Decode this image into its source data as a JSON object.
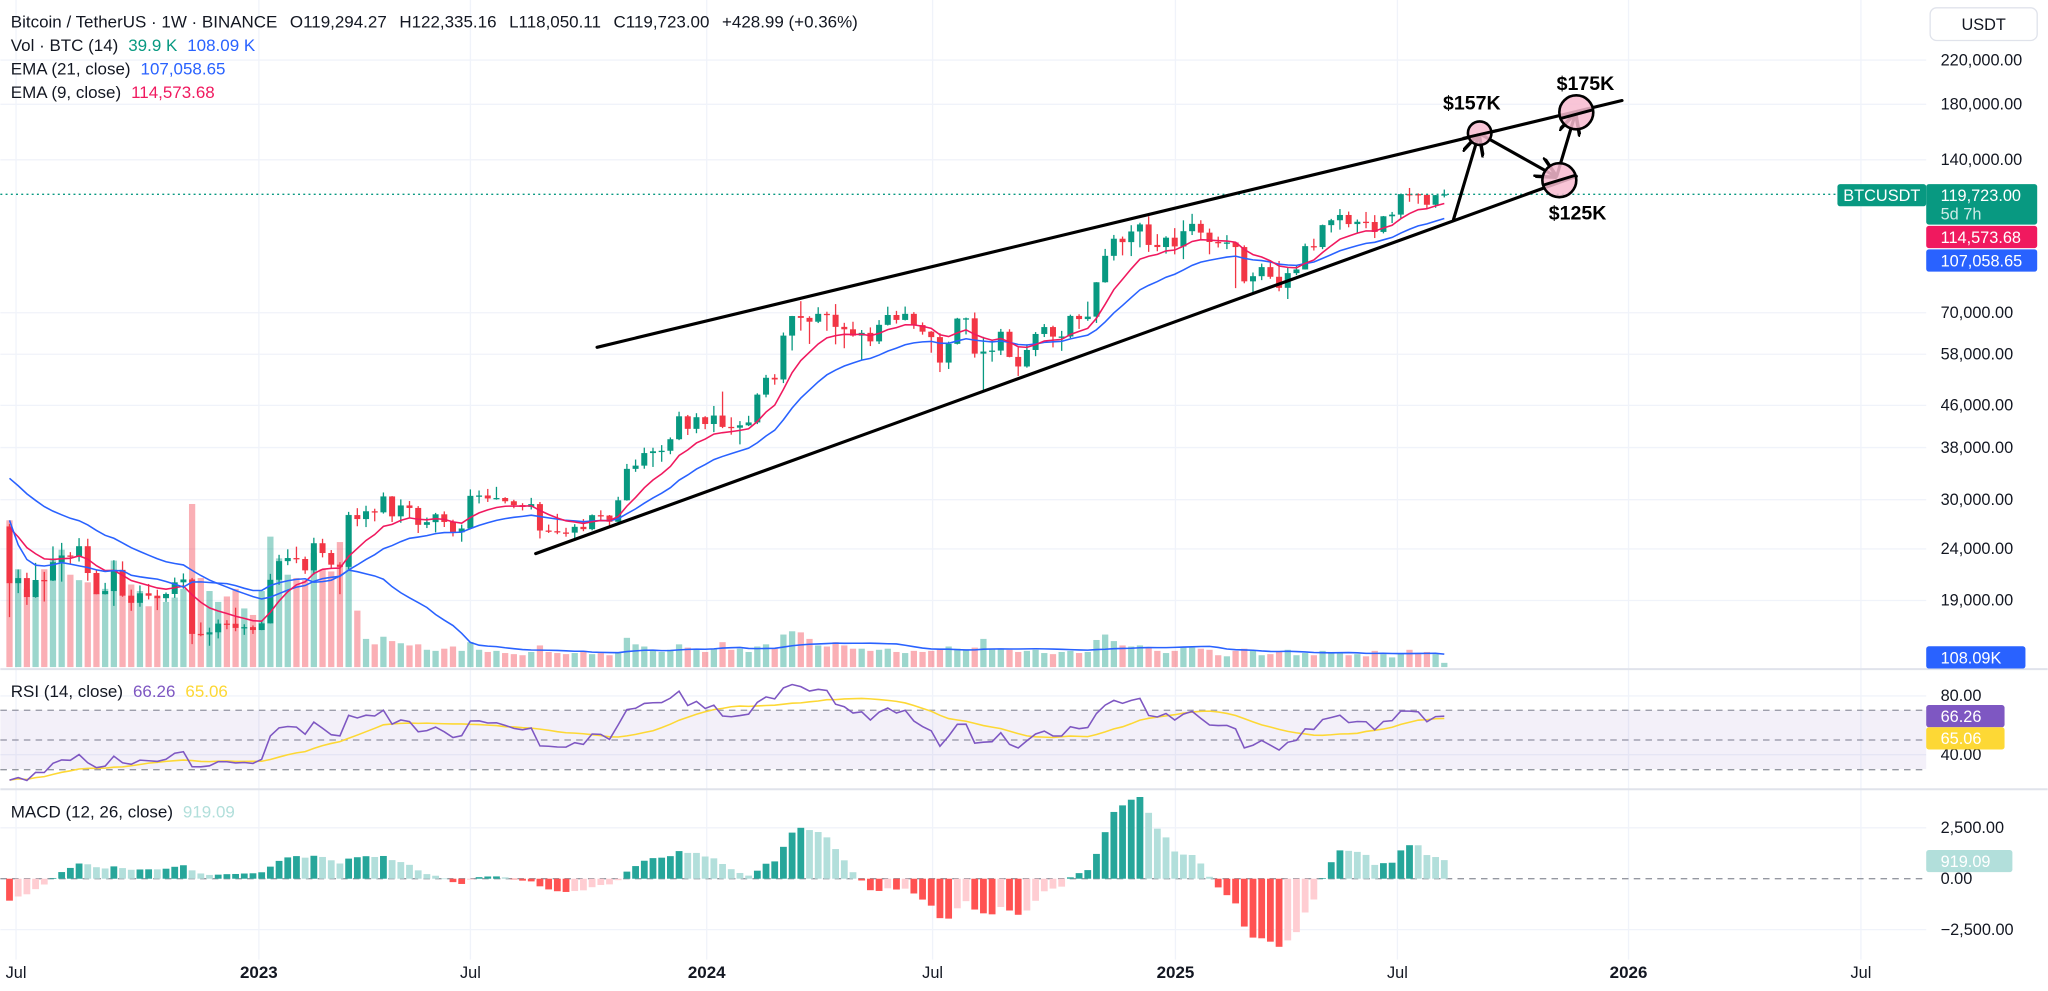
{
  "header": {
    "title": "Bitcoin / TetherUS · 1W · BINANCE",
    "ohlc": [
      {
        "label": "O",
        "value": "119,294.27"
      },
      {
        "label": "H",
        "value": "122,335.16"
      },
      {
        "label": "L",
        "value": "118,050.11"
      },
      {
        "label": "C",
        "value": "119,723.00"
      }
    ],
    "change": "+428.99 (+0.36%)"
  },
  "legends": {
    "volume": {
      "label": "Vol · BTC (14)",
      "value": "39.9 K",
      "ma_value": "108.09 K"
    },
    "ema21": {
      "label": "EMA (21, close)",
      "value": "107,058.65"
    },
    "ema9": {
      "label": "EMA (9, close)",
      "value": "114,573.68"
    },
    "rsi": {
      "label": "RSI (14, close)",
      "value": "66.26",
      "ma_value": "65.06"
    },
    "macd": {
      "label": "MACD (12, 26, close)",
      "value": "919.09"
    }
  },
  "price_axis": {
    "currency": "USDT",
    "ticks": [
      220000,
      180000,
      140000,
      70000,
      58000,
      46000,
      38000,
      30000,
      24000,
      19000
    ]
  },
  "badges": {
    "symbol": "BTCUSDT",
    "last_price": "119,723.00",
    "countdown": "5d 7h",
    "ema9": "114,573.68",
    "ema21": "107,058.65",
    "volume_ma": "108.09K",
    "rsi": "66.26",
    "rsi_ma": "65.06",
    "macd": "919.09"
  },
  "rsi_axis": {
    "ticks": [
      "80.00",
      "40.00"
    ]
  },
  "macd_axis": {
    "ticks": [
      "2,500.00",
      "0.00",
      "−2,500.00"
    ]
  },
  "time_axis": {
    "labels": [
      "Jul",
      "2023",
      "Jul",
      "2024",
      "Jul",
      "2025",
      "Jul",
      "2026",
      "Jul"
    ]
  },
  "annotations": {
    "target_1": "$157K",
    "target_2": "$175K",
    "target_3": "$125K"
  },
  "colors": {
    "up": "#089981",
    "down": "#f23645",
    "ema9": "#f0195f",
    "ema21": "#2962ff",
    "rsi": "#7e57c2",
    "rsi_ma": "#fdd835",
    "volume_ma": "#2962ff",
    "macd_up_strong": "#26a69a",
    "macd_up_weak": "#b2dfdb",
    "macd_down_strong": "#ff5252",
    "macd_down_weak": "#ffcdd2",
    "annotation_fill": "#f8bbd0"
  },
  "chart_data": [
    {
      "type": "candlestick",
      "title": "Bitcoin / TetherUS · 1W · BINANCE",
      "interval": "1W",
      "first_week": "2022-06-13",
      "y_scale": "log",
      "ylim": [
        15400,
        220000
      ],
      "candles_ohlc": [
        [
          26580,
          26880,
          17620,
          20550
        ],
        [
          20550,
          21870,
          19640,
          21030
        ],
        [
          21030,
          21540,
          18630,
          19300
        ],
        [
          19300,
          22530,
          19240,
          20850
        ],
        [
          20850,
          21630,
          18910,
          20800
        ],
        [
          20800,
          24280,
          20750,
          22600
        ],
        [
          22600,
          24670,
          20700,
          23300
        ],
        [
          23300,
          23650,
          22430,
          23170
        ],
        [
          23170,
          25210,
          22670,
          24300
        ],
        [
          24300,
          25140,
          20780,
          21520
        ],
        [
          21520,
          21860,
          19550,
          19550
        ],
        [
          19550,
          20580,
          19520,
          19830
        ],
        [
          19830,
          22800,
          18540,
          21830
        ],
        [
          21830,
          22680,
          19320,
          19420
        ],
        [
          19420,
          19960,
          18130,
          18800
        ],
        [
          18800,
          20340,
          18470,
          19630
        ],
        [
          19630,
          20480,
          19090,
          19420
        ],
        [
          19420,
          19950,
          18190,
          19200
        ],
        [
          19200,
          19700,
          18880,
          19570
        ],
        [
          19570,
          21080,
          19230,
          20630
        ],
        [
          20630,
          21480,
          20050,
          20900
        ],
        [
          20900,
          21050,
          15590,
          16330
        ],
        [
          16330,
          17200,
          16160,
          16290
        ],
        [
          16290,
          16800,
          15480,
          16450
        ],
        [
          16450,
          17430,
          16000,
          17110
        ],
        [
          17110,
          17380,
          16680,
          17100
        ],
        [
          17100,
          18390,
          16530,
          16780
        ],
        [
          16780,
          17060,
          16260,
          16840
        ],
        [
          16840,
          16970,
          16330,
          16620
        ],
        [
          16620,
          17280,
          16610,
          17130
        ],
        [
          17130,
          21440,
          17120,
          20870
        ],
        [
          20870,
          23370,
          20400,
          22710
        ],
        [
          22710,
          23960,
          22300,
          23030
        ],
        [
          23030,
          24250,
          22500,
          22930
        ],
        [
          22930,
          23180,
          21440,
          21780
        ],
        [
          21780,
          25250,
          21350,
          24630
        ],
        [
          24630,
          25130,
          23100,
          23560
        ],
        [
          23560,
          23880,
          21970,
          22350
        ],
        [
          22350,
          22600,
          19550,
          22130
        ],
        [
          22130,
          28390,
          21900,
          27980
        ],
        [
          27980,
          28870,
          26600,
          27480
        ],
        [
          27480,
          29190,
          26500,
          28470
        ],
        [
          28470,
          28800,
          27200,
          28330
        ],
        [
          28330,
          31000,
          28170,
          30450
        ],
        [
          30450,
          30490,
          27120,
          27820
        ],
        [
          27820,
          30040,
          27020,
          29230
        ],
        [
          29230,
          29820,
          27660,
          28900
        ],
        [
          28900,
          29140,
          25800,
          26770
        ],
        [
          26770,
          27670,
          26380,
          27100
        ],
        [
          27100,
          28260,
          25870,
          28080
        ],
        [
          28080,
          28450,
          26510,
          27120
        ],
        [
          27120,
          27400,
          25400,
          25880
        ],
        [
          25880,
          26800,
          24800,
          26330
        ],
        [
          26330,
          31430,
          26250,
          30530
        ],
        [
          30530,
          31280,
          29500,
          30580
        ],
        [
          30580,
          31500,
          29700,
          30170
        ],
        [
          30170,
          31800,
          30000,
          30230
        ],
        [
          30230,
          30340,
          29500,
          29790
        ],
        [
          29790,
          29990,
          28860,
          29280
        ],
        [
          29280,
          29530,
          28580,
          29040
        ],
        [
          29040,
          30250,
          28700,
          29410
        ],
        [
          29410,
          29690,
          25170,
          26090
        ],
        [
          26090,
          26800,
          25800,
          26010
        ],
        [
          26010,
          28140,
          25660,
          25860
        ],
        [
          25860,
          26410,
          25370,
          25840
        ],
        [
          25840,
          26850,
          24900,
          26530
        ],
        [
          26530,
          27480,
          26010,
          26250
        ],
        [
          26250,
          28060,
          26120,
          27970
        ],
        [
          27970,
          28590,
          27200,
          27920
        ],
        [
          27920,
          27990,
          26540,
          27150
        ],
        [
          27150,
          30400,
          26970,
          29920
        ],
        [
          29920,
          35280,
          29870,
          34500
        ],
        [
          34500,
          35990,
          34040,
          35010
        ],
        [
          35010,
          37980,
          34520,
          37060
        ],
        [
          37060,
          37970,
          34800,
          37360
        ],
        [
          37360,
          38420,
          35630,
          37450
        ],
        [
          37450,
          39780,
          36870,
          39460
        ],
        [
          39460,
          44700,
          39300,
          43780
        ],
        [
          43780,
          44050,
          40220,
          41360
        ],
        [
          41360,
          44400,
          40550,
          43600
        ],
        [
          43600,
          43800,
          41300,
          42280
        ],
        [
          42280,
          45880,
          40750,
          43930
        ],
        [
          43930,
          48970,
          41500,
          41730
        ],
        [
          41730,
          43580,
          40280,
          41580
        ],
        [
          41580,
          42840,
          38550,
          42030
        ],
        [
          42030,
          43880,
          41880,
          42580
        ],
        [
          42580,
          48590,
          42260,
          48300
        ],
        [
          48300,
          52820,
          47710,
          52130
        ],
        [
          52130,
          52990,
          50520,
          51730
        ],
        [
          51730,
          64000,
          50900,
          63110
        ],
        [
          63110,
          69000,
          59000,
          68960
        ],
        [
          68960,
          73780,
          64550,
          68390
        ],
        [
          68390,
          68900,
          60770,
          67210
        ],
        [
          67210,
          71770,
          66800,
          69650
        ],
        [
          69650,
          70330,
          64500,
          69360
        ],
        [
          69360,
          72800,
          60660,
          65660
        ],
        [
          65660,
          66870,
          59600,
          64940
        ],
        [
          64940,
          67200,
          62800,
          63110
        ],
        [
          63110,
          64730,
          56550,
          63900
        ],
        [
          63900,
          65500,
          60190,
          61480
        ],
        [
          61480,
          67700,
          60760,
          66270
        ],
        [
          66270,
          71950,
          66080,
          69290
        ],
        [
          69290,
          70600,
          66650,
          67760
        ],
        [
          67760,
          71990,
          67600,
          69650
        ],
        [
          69650,
          70200,
          65070,
          66200
        ],
        [
          66200,
          66990,
          63380,
          64250
        ],
        [
          64250,
          64400,
          58400,
          62680
        ],
        [
          62680,
          63800,
          53500,
          55850
        ],
        [
          55850,
          61400,
          54260,
          60800
        ],
        [
          60800,
          68400,
          60630,
          68170
        ],
        [
          68170,
          68480,
          63450,
          68250
        ],
        [
          68250,
          70080,
          57120,
          58160
        ],
        [
          58160,
          62750,
          49000,
          58710
        ],
        [
          58710,
          61800,
          56080,
          58970
        ],
        [
          58970,
          65050,
          57790,
          64220
        ],
        [
          64220,
          64960,
          57200,
          57300
        ],
        [
          57300,
          59810,
          52550,
          54870
        ],
        [
          54870,
          60670,
          54580,
          59130
        ],
        [
          59130,
          64130,
          57490,
          63580
        ],
        [
          63580,
          66500,
          62700,
          65600
        ],
        [
          65600,
          66000,
          59830,
          62820
        ],
        [
          62820,
          64480,
          58900,
          62850
        ],
        [
          62850,
          69400,
          62420,
          69000
        ],
        [
          69000,
          69520,
          65050,
          68020
        ],
        [
          68020,
          73620,
          67480,
          68780
        ],
        [
          68780,
          80400,
          66840,
          80370
        ],
        [
          80370,
          93480,
          80220,
          90590
        ],
        [
          90590,
          99590,
          88700,
          97900
        ],
        [
          97900,
          98870,
          90790,
          96400
        ],
        [
          96400,
          104090,
          90500,
          101170
        ],
        [
          101170,
          105250,
          94150,
          104460
        ],
        [
          104460,
          108350,
          92230,
          95190
        ],
        [
          95190,
          99960,
          92500,
          94280
        ],
        [
          94280,
          99000,
          91530,
          98360
        ],
        [
          98360,
          102720,
          91200,
          94540
        ],
        [
          94540,
          106420,
          89250,
          101300
        ],
        [
          101300,
          109590,
          99550,
          104720
        ],
        [
          104720,
          106460,
          97780,
          100640
        ],
        [
          100640,
          102500,
          91230,
          96460
        ],
        [
          96460,
          98830,
          94090,
          96120
        ],
        [
          96120,
          99500,
          93390,
          96250
        ],
        [
          96250,
          96500,
          78260,
          94270
        ],
        [
          94270,
          95000,
          80000,
          80700
        ],
        [
          80700,
          84000,
          76600,
          82610
        ],
        [
          82610,
          87450,
          81150,
          86080
        ],
        [
          86080,
          88770,
          81650,
          82390
        ],
        [
          82390,
          88500,
          77150,
          78370
        ],
        [
          78370,
          86100,
          74500,
          83760
        ],
        [
          83760,
          86500,
          83000,
          85170
        ],
        [
          85170,
          95760,
          85140,
          94670
        ],
        [
          94670,
          97900,
          92800,
          94280
        ],
        [
          94280,
          104360,
          93380,
          104120
        ],
        [
          104120,
          107110,
          100720,
          106450
        ],
        [
          106450,
          111980,
          102000,
          109020
        ],
        [
          109020,
          110720,
          103100,
          104620
        ],
        [
          104620,
          106800,
          100370,
          105730
        ],
        [
          105730,
          110530,
          102660,
          105600
        ],
        [
          105600,
          108950,
          98200,
          100960
        ],
        [
          100960,
          108530,
          100300,
          108380
        ],
        [
          108380,
          110530,
          105100,
          109200
        ],
        [
          109200,
          119900,
          107470,
          119840
        ],
        [
          119840,
          123220,
          115740,
          119820
        ],
        [
          119820,
          120250,
          114720,
          119450
        ],
        [
          119450,
          119800,
          112000,
          114200
        ],
        [
          114200,
          119310,
          112650,
          119290
        ],
        [
          119294.27,
          122335.16,
          118050.11,
          119723.0
        ]
      ],
      "volume_k": [
        1350,
        900,
        720,
        780,
        900,
        1000,
        1080,
        850,
        800,
        780,
        680,
        720,
        980,
        880,
        760,
        700,
        560,
        640,
        600,
        640,
        720,
        1500,
        820,
        700,
        600,
        650,
        720,
        540,
        480,
        700,
        1200,
        1000,
        850,
        820,
        800,
        1050,
        900,
        880,
        1150,
        1400,
        520,
        260,
        210,
        280,
        240,
        220,
        200,
        210,
        160,
        150,
        170,
        190,
        150,
        230,
        160,
        140,
        150,
        130,
        120,
        110,
        140,
        200,
        140,
        130,
        120,
        130,
        150,
        120,
        130,
        110,
        140,
        270,
        210,
        190,
        150,
        140,
        160,
        210,
        180,
        160,
        140,
        170,
        230,
        160,
        170,
        140,
        190,
        210,
        170,
        300,
        330,
        320,
        260,
        200,
        190,
        230,
        200,
        170,
        170,
        150,
        160,
        170,
        140,
        130,
        150,
        140,
        150,
        170,
        190,
        170,
        160,
        180,
        260,
        170,
        170,
        160,
        140,
        150,
        160,
        130,
        120,
        140,
        150,
        130,
        140,
        250,
        300,
        240,
        200,
        190,
        200,
        180,
        150,
        130,
        150,
        180,
        180,
        170,
        160,
        110,
        100,
        150,
        170,
        150,
        110,
        120,
        140,
        160,
        110,
        130,
        110,
        150,
        140,
        130,
        110,
        120,
        100,
        150,
        120,
        90,
        130,
        160,
        130,
        140,
        120,
        39.9
      ],
      "overlays": [
        "EMA (21, close)",
        "EMA (9, close)",
        "Vol · BTC (14)"
      ]
    },
    {
      "type": "line",
      "title": "RSI (14, close)",
      "ylim": [
        20,
        95
      ],
      "levels": [
        70,
        50,
        30
      ],
      "last": {
        "rsi": 66.26,
        "rsi_ma": 65.06
      }
    },
    {
      "type": "bar",
      "title": "MACD (12, 26, close)",
      "ylim": [
        -3500,
        4000
      ],
      "last": {
        "histogram": 919.09
      }
    }
  ]
}
